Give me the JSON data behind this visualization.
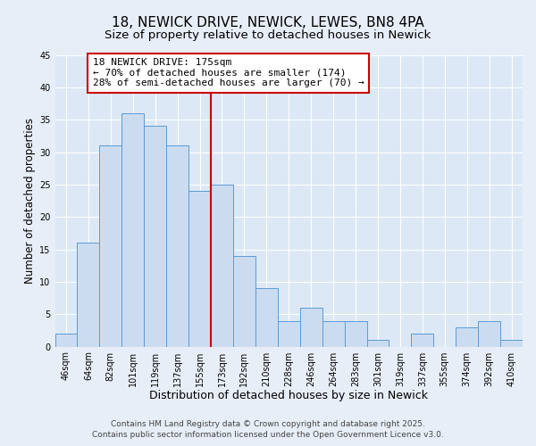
{
  "title": "18, NEWICK DRIVE, NEWICK, LEWES, BN8 4PA",
  "subtitle": "Size of property relative to detached houses in Newick",
  "xlabel": "Distribution of detached houses by size in Newick",
  "ylabel": "Number of detached properties",
  "bar_labels": [
    "46sqm",
    "64sqm",
    "82sqm",
    "101sqm",
    "119sqm",
    "137sqm",
    "155sqm",
    "173sqm",
    "192sqm",
    "210sqm",
    "228sqm",
    "246sqm",
    "264sqm",
    "283sqm",
    "301sqm",
    "319sqm",
    "337sqm",
    "355sqm",
    "374sqm",
    "392sqm",
    "410sqm"
  ],
  "bar_values": [
    2,
    16,
    31,
    36,
    34,
    31,
    24,
    25,
    14,
    9,
    4,
    6,
    4,
    4,
    1,
    0,
    2,
    0,
    3,
    4,
    1
  ],
  "bar_color": "#ccdcf0",
  "bar_edge_color": "#5b9bd5",
  "vline_color": "#cc0000",
  "annotation_title": "18 NEWICK DRIVE: 175sqm",
  "annotation_line1": "← 70% of detached houses are smaller (174)",
  "annotation_line2": "28% of semi-detached houses are larger (70) →",
  "annotation_box_color": "#ffffff",
  "annotation_box_edge_color": "#cc0000",
  "ylim": [
    0,
    45
  ],
  "yticks": [
    0,
    5,
    10,
    15,
    20,
    25,
    30,
    35,
    40,
    45
  ],
  "footer1": "Contains HM Land Registry data © Crown copyright and database right 2025.",
  "footer2": "Contains public sector information licensed under the Open Government Licence v3.0.",
  "bg_color": "#e8eef8",
  "plot_bg_color": "#dce8f5",
  "title_fontsize": 11,
  "subtitle_fontsize": 9.5,
  "xlabel_fontsize": 9,
  "ylabel_fontsize": 8.5,
  "tick_fontsize": 7,
  "annotation_fontsize": 8,
  "footer_fontsize": 6.5
}
